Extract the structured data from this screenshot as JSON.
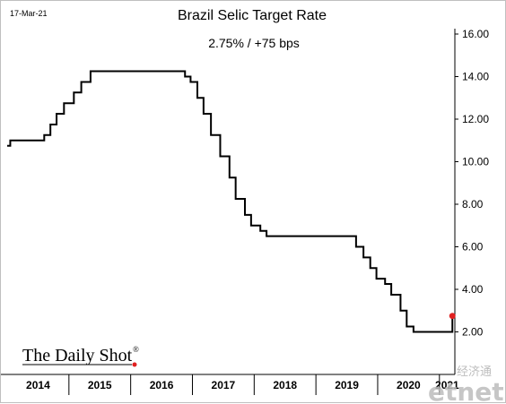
{
  "chart_data": {
    "type": "line",
    "step": true,
    "title": "Brazil Selic Target Rate",
    "subtitle": "2.75%  /  +75 bps",
    "date_stamp": "17-Mar-21",
    "ylim": [
      0,
      16
    ],
    "ytick_labels": [
      "2.00",
      "4.00",
      "6.00",
      "8.00",
      "10.00",
      "12.00",
      "14.00",
      "16.00"
    ],
    "ytick_values": [
      2,
      4,
      6,
      8,
      10,
      12,
      14,
      16
    ],
    "xlim": [
      2014.0,
      2021.25
    ],
    "x_categories": [
      "2014",
      "2015",
      "2016",
      "2017",
      "2018",
      "2019",
      "2020",
      "2021"
    ],
    "series": [
      {
        "values": [
          [
            2014.0,
            10.75
          ],
          [
            2014.05,
            11.0
          ],
          [
            2014.55,
            11.0
          ],
          [
            2014.6,
            11.25
          ],
          [
            2014.7,
            11.75
          ],
          [
            2014.8,
            12.25
          ],
          [
            2014.92,
            12.75
          ],
          [
            2015.08,
            13.25
          ],
          [
            2015.2,
            13.75
          ],
          [
            2015.35,
            14.25
          ],
          [
            2016.8,
            14.25
          ],
          [
            2016.88,
            14.0
          ],
          [
            2016.97,
            13.75
          ],
          [
            2017.08,
            13.0
          ],
          [
            2017.18,
            12.25
          ],
          [
            2017.3,
            11.25
          ],
          [
            2017.45,
            10.25
          ],
          [
            2017.6,
            9.25
          ],
          [
            2017.7,
            8.25
          ],
          [
            2017.85,
            7.5
          ],
          [
            2017.95,
            7.0
          ],
          [
            2018.1,
            6.75
          ],
          [
            2018.2,
            6.5
          ],
          [
            2019.55,
            6.5
          ],
          [
            2019.65,
            6.0
          ],
          [
            2019.77,
            5.5
          ],
          [
            2019.88,
            5.0
          ],
          [
            2019.98,
            4.5
          ],
          [
            2020.12,
            4.25
          ],
          [
            2020.22,
            3.75
          ],
          [
            2020.37,
            3.0
          ],
          [
            2020.47,
            2.25
          ],
          [
            2020.58,
            2.0
          ],
          [
            2021.2,
            2.0
          ],
          [
            2021.21,
            2.75
          ]
        ]
      }
    ],
    "last_point": {
      "x": 2021.21,
      "y": 2.75,
      "color": "#e02020"
    },
    "grid": false,
    "line_color": "#000000"
  },
  "branding": {
    "logo_text": "The Daily Shot",
    "logo_mark": "®",
    "watermark_cn": "经济通",
    "watermark_en": "etnet"
  }
}
